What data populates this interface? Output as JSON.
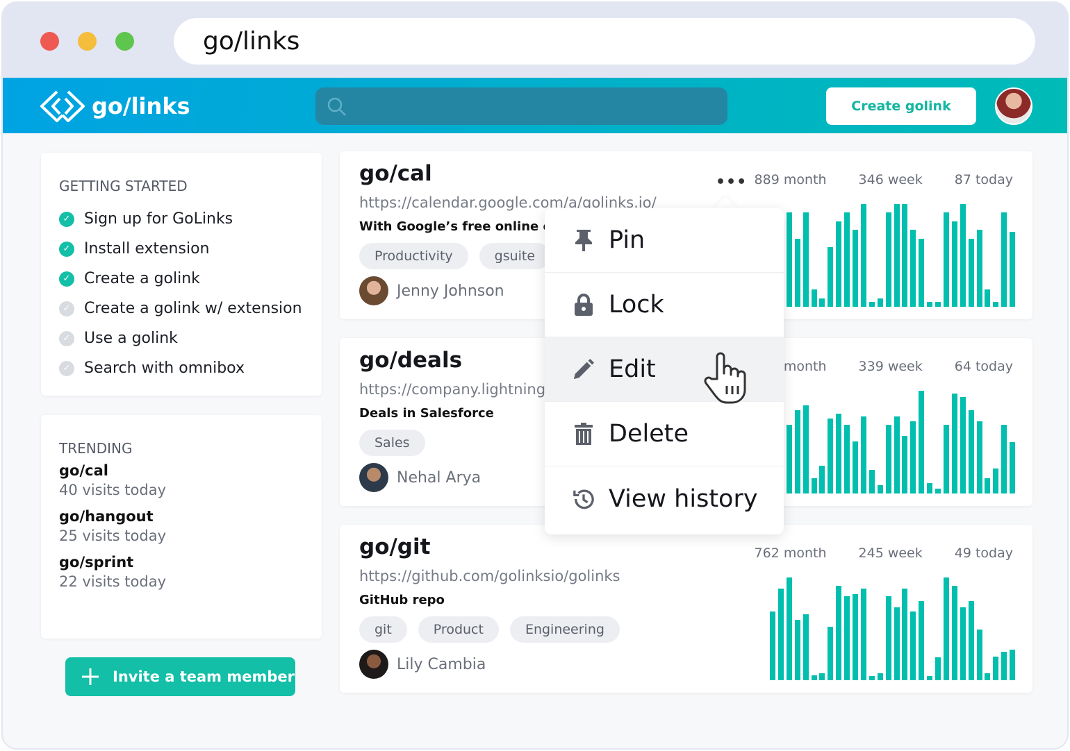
{
  "browser": {
    "address": "go/links",
    "traffic_lights": [
      "#ee5a52",
      "#f5bd3c",
      "#5ec54f"
    ]
  },
  "header": {
    "logo_text": "go/links",
    "search_placeholder": "",
    "create_label": "Create golink"
  },
  "colors": {
    "accent": "#13bfa6",
    "bar": "#00bfae",
    "header_start": "#00a3e3",
    "header_end": "#00bbb6"
  },
  "getting_started": {
    "title": "GETTING STARTED",
    "steps": [
      {
        "label": "Sign up for GoLinks",
        "done": true
      },
      {
        "label": "Install extension",
        "done": true
      },
      {
        "label": "Create a golink",
        "done": true
      },
      {
        "label": "Create a golink w/ extension",
        "done": false
      },
      {
        "label": "Use a golink",
        "done": false
      },
      {
        "label": "Search with omnibox",
        "done": false
      }
    ]
  },
  "trending": {
    "title": "TRENDING",
    "items": [
      {
        "name": "go/cal",
        "visits": "40 visits today"
      },
      {
        "name": "go/hangout",
        "visits": "25 visits today"
      },
      {
        "name": "go/sprint",
        "visits": "22 visits today"
      }
    ]
  },
  "invite_label": "Invite a team member",
  "links": [
    {
      "title": "go/cal",
      "url": "https://calendar.google.com/a/golinks.io/",
      "desc": "With Google’s free online cale",
      "tags": [
        "Productivity",
        "gsuite"
      ],
      "owner": "Jenny Johnson",
      "stats": [
        "889 month",
        "346 week",
        "87 today"
      ],
      "bars": [
        80,
        70,
        92,
        66,
        92,
        17,
        8,
        58,
        83,
        92,
        75,
        100,
        5,
        8,
        92,
        100,
        100,
        75,
        66,
        5,
        5,
        92,
        83,
        100,
        66,
        75,
        17,
        5,
        92,
        73
      ]
    },
    {
      "title": "go/deals",
      "url": "https://company.lightning",
      "desc": "Deals in Salesforce",
      "tags": [
        "Sales"
      ],
      "owner": "Nehal Arya",
      "stats": [
        "2 month",
        "339 week",
        "64 today"
      ],
      "bars": [
        70,
        60,
        67,
        81,
        86,
        15,
        27,
        73,
        78,
        67,
        51,
        75,
        23,
        8,
        67,
        75,
        56,
        70,
        100,
        10,
        5,
        67,
        97,
        94,
        81,
        70,
        15,
        24,
        67,
        50
      ]
    },
    {
      "title": "go/git",
      "url": "https://github.com/golinksio/golinks",
      "desc": "GitHub repo",
      "tags": [
        "git",
        "Product",
        "Engineering"
      ],
      "owner": "Lily Cambia",
      "stats": [
        "762 month",
        "245 week",
        "49 today"
      ],
      "bars": [
        67,
        89,
        100,
        59,
        64,
        5,
        7,
        52,
        92,
        82,
        84,
        89,
        4,
        7,
        82,
        71,
        89,
        67,
        77,
        4,
        22,
        100,
        92,
        71,
        77,
        49,
        7,
        23,
        28,
        30
      ]
    }
  ],
  "menu": {
    "items": [
      {
        "label": "Pin",
        "icon": "pin-icon"
      },
      {
        "label": "Lock",
        "icon": "lock-icon"
      },
      {
        "label": "Edit",
        "icon": "pencil-icon",
        "highlighted": true
      },
      {
        "label": "Delete",
        "icon": "trash-icon"
      },
      {
        "label": "View history",
        "icon": "history-icon"
      }
    ]
  }
}
